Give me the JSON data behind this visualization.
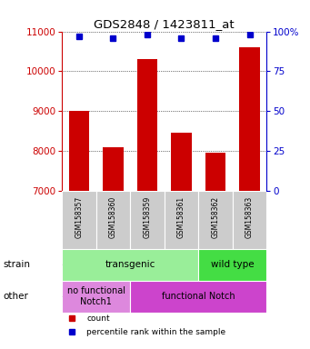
{
  "title": "GDS2848 / 1423811_at",
  "samples": [
    "GSM158357",
    "GSM158360",
    "GSM158359",
    "GSM158361",
    "GSM158362",
    "GSM158363"
  ],
  "counts": [
    9000,
    8100,
    10300,
    8450,
    7950,
    10600
  ],
  "percentiles": [
    97,
    96,
    98,
    96,
    96,
    98
  ],
  "ylim_left": [
    7000,
    11000
  ],
  "ylim_right": [
    0,
    100
  ],
  "yticks_left": [
    7000,
    8000,
    9000,
    10000,
    11000
  ],
  "yticks_right": [
    0,
    25,
    50,
    75,
    100
  ],
  "bar_color": "#cc0000",
  "dot_color": "#0000cc",
  "bar_width": 0.6,
  "strain_data": [
    {
      "text": "transgenic",
      "start": 0,
      "end": 3,
      "color": "#99ee99"
    },
    {
      "text": "wild type",
      "start": 4,
      "end": 5,
      "color": "#44dd44"
    }
  ],
  "other_data": [
    {
      "text": "no functional\nNotch1",
      "start": 0,
      "end": 1,
      "color": "#dd88dd"
    },
    {
      "text": "functional Notch",
      "start": 2,
      "end": 5,
      "color": "#cc44cc"
    }
  ],
  "xlabel_bg_color": "#cccccc",
  "background_color": "#ffffff",
  "tick_color_left": "#cc0000",
  "tick_color_right": "#0000cc"
}
